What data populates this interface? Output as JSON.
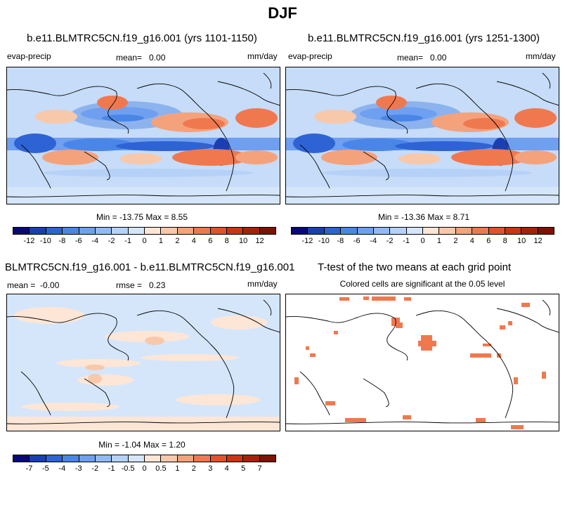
{
  "page_title": "DJF",
  "panels": {
    "top_left": {
      "title": "b.e11.BLMTRC5CN.f19_g16.001 (yrs 1101-1150)",
      "variable": "evap-precip",
      "mean_label": "mean=",
      "mean_value": "0.00",
      "units": "mm/day",
      "minmax": "Min = -13.75 Max =   8.55"
    },
    "top_right": {
      "title": "b.e11.BLMTRC5CN.f19_g16.001 (yrs 1251-1300)",
      "variable": "evap-precip",
      "mean_label": "mean=",
      "mean_value": "0.00",
      "units": "mm/day",
      "minmax": "Min = -13.36 Max =   8.71"
    },
    "bottom_left": {
      "title": "BLMTRC5CN.f19_g16.001 - b.e11.BLMTRC5CN.f19_g16.001",
      "mean_label": "mean =",
      "mean_value": "-0.00",
      "rmse_label": "rmse =",
      "rmse_value": "0.23",
      "units": "mm/day",
      "minmax": "Min = -1.04 Max =   1.20"
    },
    "bottom_right": {
      "title": "T-test of the two means at each grid point",
      "subtitle": "Colored cells are significant at the 0.05 level"
    }
  },
  "colorbars": {
    "top": {
      "labels": [
        "-12",
        "-10",
        "-8",
        "-6",
        "-4",
        "-2",
        "-1",
        "0",
        "1",
        "2",
        "4",
        "6",
        "8",
        "10",
        "12"
      ],
      "colors": [
        "#08087a",
        "#1a3fb5",
        "#2e63d6",
        "#4a86e8",
        "#6f9ff0",
        "#93b9f5",
        "#b6d1f8",
        "#d5e6fb",
        "#fde6d6",
        "#f8c8ab",
        "#f4a27c",
        "#f0784f",
        "#e5512a",
        "#cc3412",
        "#a8200a",
        "#7e1205"
      ]
    },
    "bottom": {
      "labels": [
        "-7",
        "-5",
        "-4",
        "-3",
        "-2",
        "-1",
        "-0.5",
        "0",
        "0.5",
        "1",
        "2",
        "3",
        "4",
        "5",
        "7"
      ],
      "colors": [
        "#08087a",
        "#1a3fb5",
        "#2e63d6",
        "#4a86e8",
        "#6f9ff0",
        "#93b9f5",
        "#b6d1f8",
        "#d5e6fb",
        "#fde6d6",
        "#f8c8ab",
        "#f4a27c",
        "#f0784f",
        "#e5512a",
        "#cc3412",
        "#a8200a",
        "#7e1205"
      ]
    }
  }
}
